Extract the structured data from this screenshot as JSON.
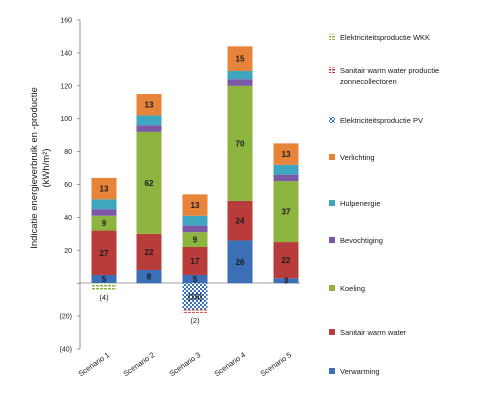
{
  "chart_data": {
    "type": "bar",
    "stacked": true,
    "categories": [
      "Scenario 1",
      "Scenario 2",
      "Scenario 3",
      "Scenario 4",
      "Scenario 5"
    ],
    "ylabel": "Indicatie energieverbruik en -productie (kWh/m²)",
    "ylabel_line1": "Indicatie energieverbruik en -productie",
    "ylabel_line2": "(kWh/m²)",
    "ylim": [
      -40,
      160
    ],
    "yticks": [
      -40,
      -20,
      0,
      20,
      40,
      60,
      80,
      100,
      120,
      140,
      160
    ],
    "ytick_labels": [
      "(40)",
      "(20)",
      "",
      "20",
      "40",
      "60",
      "80",
      "100",
      "120",
      "140",
      "160"
    ],
    "grid": false,
    "legend_position": "right",
    "series": [
      {
        "name": "Verwarming",
        "color": "#3b6fb6",
        "values": [
          5,
          8,
          5,
          26,
          3
        ],
        "labels": [
          "5",
          "8",
          "5",
          "26",
          "3"
        ]
      },
      {
        "name": "Sanitair warm water",
        "color": "#b83c3a",
        "values": [
          27,
          22,
          17,
          24,
          22
        ],
        "labels": [
          "27",
          "22",
          "17",
          "24",
          "22"
        ]
      },
      {
        "name": "Koeling",
        "color": "#8db43f",
        "values": [
          9,
          62,
          9,
          70,
          37
        ],
        "labels": [
          "9",
          "62",
          "9",
          "70",
          "37"
        ]
      },
      {
        "name": "Bevochtiging",
        "color": "#7b58a6",
        "values": [
          4,
          4,
          4,
          4,
          4
        ],
        "labels": [
          "",
          "",
          "",
          "",
          ""
        ]
      },
      {
        "name": "Hulpenergie",
        "color": "#3fa6bf",
        "values": [
          6,
          6,
          6,
          5,
          6
        ],
        "labels": [
          "",
          "",
          "",
          "",
          ""
        ]
      },
      {
        "name": "Verlichting",
        "color": "#e8833a",
        "values": [
          13,
          13,
          13,
          15,
          13
        ],
        "labels": [
          "13",
          "13",
          "13",
          "15",
          "13"
        ]
      },
      {
        "name": "Elektriciteitsproductie PV",
        "color": "#3b6fb6",
        "pattern": "checker",
        "values": [
          0,
          0,
          -16,
          0,
          0
        ],
        "labels": [
          "",
          "",
          "(16)",
          "",
          ""
        ]
      },
      {
        "name": "Sanitair warm water productie zonnecollectoren",
        "color": "#c0393b",
        "pattern": "dashed",
        "values": [
          0,
          0,
          -2,
          0,
          0
        ],
        "labels": [
          "",
          "",
          "(2)",
          "",
          ""
        ]
      },
      {
        "name": "Elektriciteitsproductie WKK",
        "color": "#8db43f",
        "pattern": "dashed",
        "values": [
          -4,
          0,
          0,
          0,
          0
        ],
        "labels": [
          "(4)",
          "",
          "",
          "",
          ""
        ]
      }
    ]
  },
  "legend_order": [
    {
      "label": "Elektriciteitsproductie WKK",
      "series": 8
    },
    {
      "label": "Sanitair warm water productie zonnecollectoren",
      "line1": "Sanitair warm water productie",
      "line2": "zonnecollectoren",
      "series": 7
    },
    {
      "label": "Elektriciteitsproductie PV",
      "series": 6
    },
    {
      "label": "Verlichting",
      "series": 5
    },
    {
      "label": "Hulpenergie",
      "series": 4
    },
    {
      "label": "Bevochtiging",
      "series": 3
    },
    {
      "label": "Koeling",
      "series": 2
    },
    {
      "label": "Sanitair warm water",
      "series": 1
    },
    {
      "label": "Verwarming",
      "series": 0
    }
  ]
}
